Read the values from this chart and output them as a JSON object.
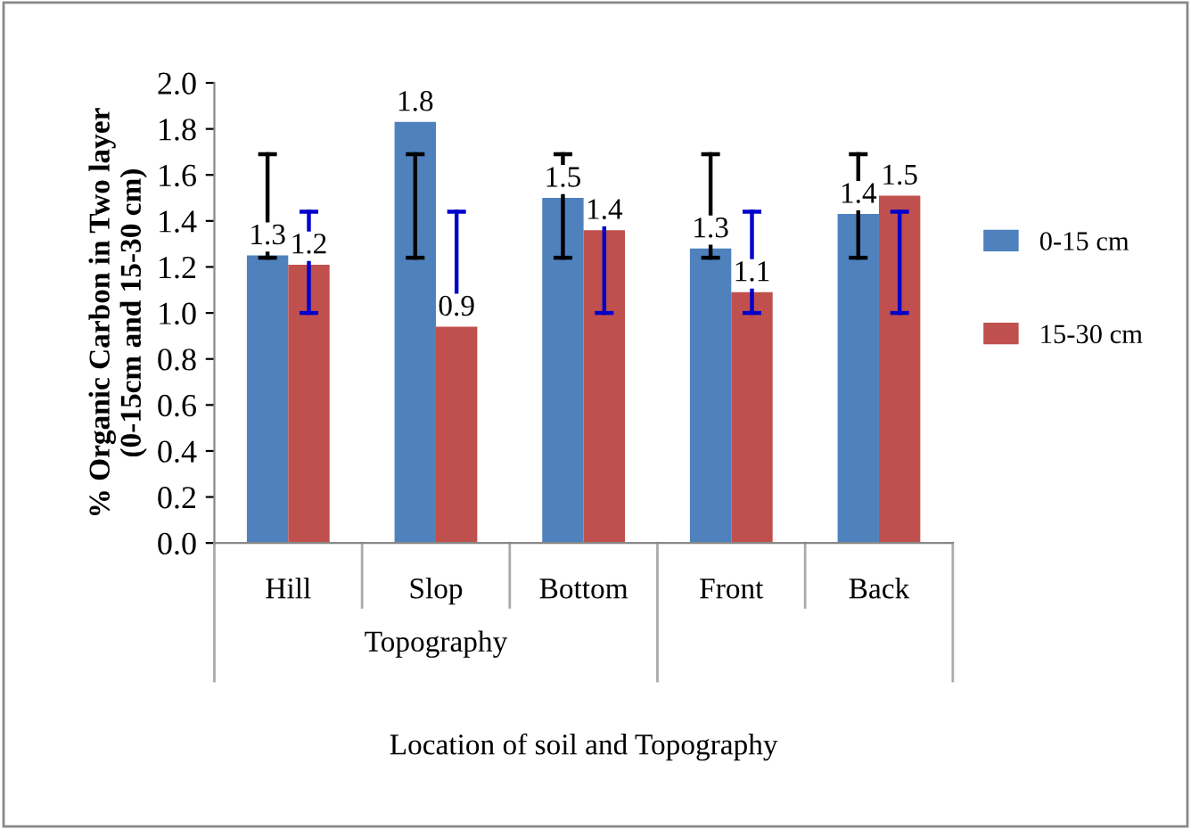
{
  "chart_data": {
    "type": "bar",
    "categories": [
      "Hill",
      "Slop",
      "Bottom",
      "Front",
      "Back"
    ],
    "series": [
      {
        "name": "0-15 cm",
        "color": "#4f81bd",
        "values": [
          1.25,
          1.83,
          1.5,
          1.28,
          1.43
        ],
        "value_labels": [
          "1.3",
          "1.8",
          "1.5",
          "1.3",
          "1.4"
        ],
        "errors": [
          [
            1.24,
            1.69
          ],
          [
            1.24,
            1.69
          ],
          [
            1.24,
            1.69
          ],
          [
            1.24,
            1.69
          ],
          [
            1.24,
            1.69
          ]
        ]
      },
      {
        "name": "15-30 cm",
        "color": "#c0504d",
        "values": [
          1.21,
          0.94,
          1.36,
          1.09,
          1.51
        ],
        "value_labels": [
          "1.2",
          "0.9",
          "1.4",
          "1.1",
          "1.5"
        ],
        "errors": [
          [
            1.0,
            1.44
          ],
          [
            1.0,
            1.44
          ],
          [
            1.0,
            1.44
          ],
          [
            1.0,
            1.44
          ],
          [
            1.0,
            1.44
          ]
        ]
      }
    ],
    "ylabel": "% Organic Carbon in Two layer\n(0-15cm and 15-30 cm)",
    "xlabel": "Location of soil and Topography",
    "annotations": [
      "Topography"
    ],
    "ylim": [
      0,
      2.0
    ],
    "yticks": [
      {
        "value": 0,
        "label": "0.0"
      },
      {
        "value": 0.2,
        "label": "0.2"
      },
      {
        "value": 0.4,
        "label": "0.4"
      },
      {
        "value": 0.6,
        "label": "0.6"
      },
      {
        "value": 0.8,
        "label": "0.8"
      },
      {
        "value": 1.0,
        "label": "1.0"
      },
      {
        "value": 1.2,
        "label": "1.2"
      },
      {
        "value": 1.4,
        "label": "1.4"
      },
      {
        "value": 1.6,
        "label": "1.6"
      },
      {
        "value": 1.8,
        "label": "1.8"
      },
      {
        "value": 2.0,
        "label": "2.0"
      }
    ],
    "legend": "right",
    "grid": false
  }
}
